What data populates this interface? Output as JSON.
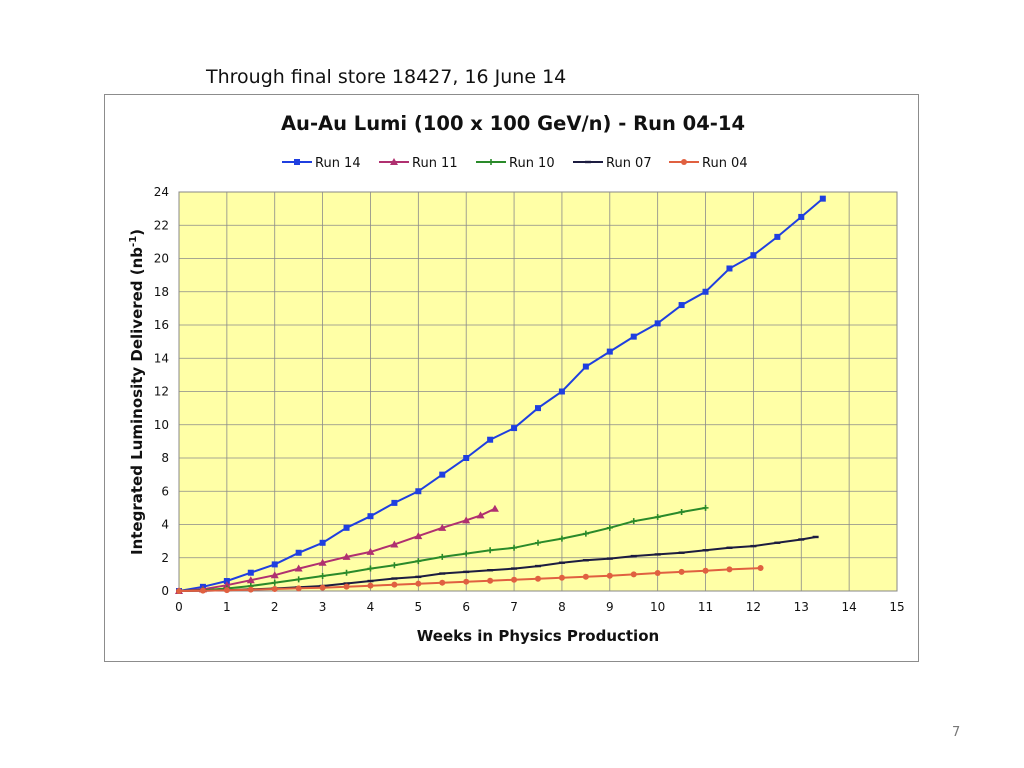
{
  "slide": {
    "caption": "Through final store 18427, 16 June 14",
    "page_number": "7"
  },
  "chart_data": {
    "type": "line",
    "title": "Au-Au Lumi (100 x 100 GeV/n) - Run 04-14",
    "xlabel": "Weeks in Physics Production",
    "ylabel_main": "Integrated Luminosity Delivered (nb",
    "ylabel_sup": "-1",
    "ylabel_close": ")",
    "xlim": [
      0,
      15
    ],
    "ylim": [
      0,
      24
    ],
    "xticks": [
      0,
      1,
      2,
      3,
      4,
      5,
      6,
      7,
      8,
      9,
      10,
      11,
      12,
      13,
      14,
      15
    ],
    "yticks": [
      0,
      2,
      4,
      6,
      8,
      10,
      12,
      14,
      16,
      18,
      20,
      22,
      24
    ],
    "grid": true,
    "plot_background": "#ffffa6",
    "legend_position": "top",
    "series": [
      {
        "name": "Run 14",
        "color": "#1f3fe0",
        "marker": "square",
        "x": [
          0,
          0.5,
          1,
          1.5,
          2,
          2.5,
          3,
          3.5,
          4,
          4.5,
          5,
          5.5,
          6,
          6.5,
          7,
          7.5,
          8,
          8.5,
          9,
          9.5,
          10,
          10.5,
          11,
          11.5,
          12,
          12.5,
          13,
          13.45
        ],
        "y": [
          0,
          0.25,
          0.6,
          1.1,
          1.6,
          2.3,
          2.9,
          3.8,
          4.5,
          5.3,
          6,
          7,
          8,
          9.1,
          9.8,
          11,
          12,
          13.5,
          14.4,
          15.3,
          16.1,
          17.2,
          18,
          19.4,
          20.2,
          21.3,
          22.5,
          23.6
        ]
      },
      {
        "name": "Run 11",
        "color": "#b03070",
        "marker": "triangle",
        "x": [
          0,
          0.5,
          1,
          1.5,
          2,
          2.5,
          3,
          3.5,
          4,
          4.5,
          5,
          5.5,
          6,
          6.3,
          6.6
        ],
        "y": [
          0,
          0.1,
          0.35,
          0.65,
          0.95,
          1.35,
          1.7,
          2.05,
          2.35,
          2.8,
          3.3,
          3.8,
          4.25,
          4.55,
          4.95
        ]
      },
      {
        "name": "Run 10",
        "color": "#2a8a2a",
        "marker": "plus",
        "x": [
          0,
          0.5,
          1,
          1.5,
          2,
          2.5,
          3,
          3.5,
          4,
          4.5,
          5,
          5.5,
          6,
          6.5,
          7,
          7.5,
          8,
          8.5,
          9,
          9.5,
          10,
          10.5,
          11
        ],
        "y": [
          0,
          0.05,
          0.15,
          0.3,
          0.5,
          0.7,
          0.9,
          1.1,
          1.35,
          1.55,
          1.8,
          2.05,
          2.25,
          2.45,
          2.6,
          2.9,
          3.15,
          3.45,
          3.8,
          4.2,
          4.45,
          4.75,
          5.0
        ]
      },
      {
        "name": "Run 07",
        "color": "#1c1c40",
        "marker": "dash",
        "x": [
          0,
          0.5,
          1,
          1.5,
          2,
          2.5,
          3,
          3.5,
          4,
          4.5,
          5,
          5.5,
          6,
          6.5,
          7,
          7.5,
          8,
          8.5,
          9,
          9.5,
          10,
          10.5,
          11,
          11.5,
          12,
          12.5,
          13,
          13.3
        ],
        "y": [
          0,
          0.02,
          0.05,
          0.1,
          0.15,
          0.22,
          0.3,
          0.45,
          0.6,
          0.75,
          0.85,
          1.05,
          1.15,
          1.25,
          1.35,
          1.5,
          1.7,
          1.85,
          1.95,
          2.1,
          2.2,
          2.3,
          2.45,
          2.6,
          2.7,
          2.9,
          3.1,
          3.25
        ]
      },
      {
        "name": "Run 04",
        "color": "#e06040",
        "marker": "circle",
        "x": [
          0,
          0.5,
          1,
          1.5,
          2,
          2.5,
          3,
          3.5,
          4,
          4.5,
          5,
          5.5,
          6,
          6.5,
          7,
          7.5,
          8,
          8.5,
          9,
          9.5,
          10,
          10.5,
          11,
          11.5,
          12.15
        ],
        "y": [
          0,
          0.02,
          0.05,
          0.08,
          0.12,
          0.16,
          0.2,
          0.26,
          0.32,
          0.38,
          0.44,
          0.5,
          0.56,
          0.62,
          0.68,
          0.74,
          0.8,
          0.86,
          0.92,
          1.0,
          1.08,
          1.15,
          1.22,
          1.3,
          1.38
        ]
      }
    ]
  }
}
